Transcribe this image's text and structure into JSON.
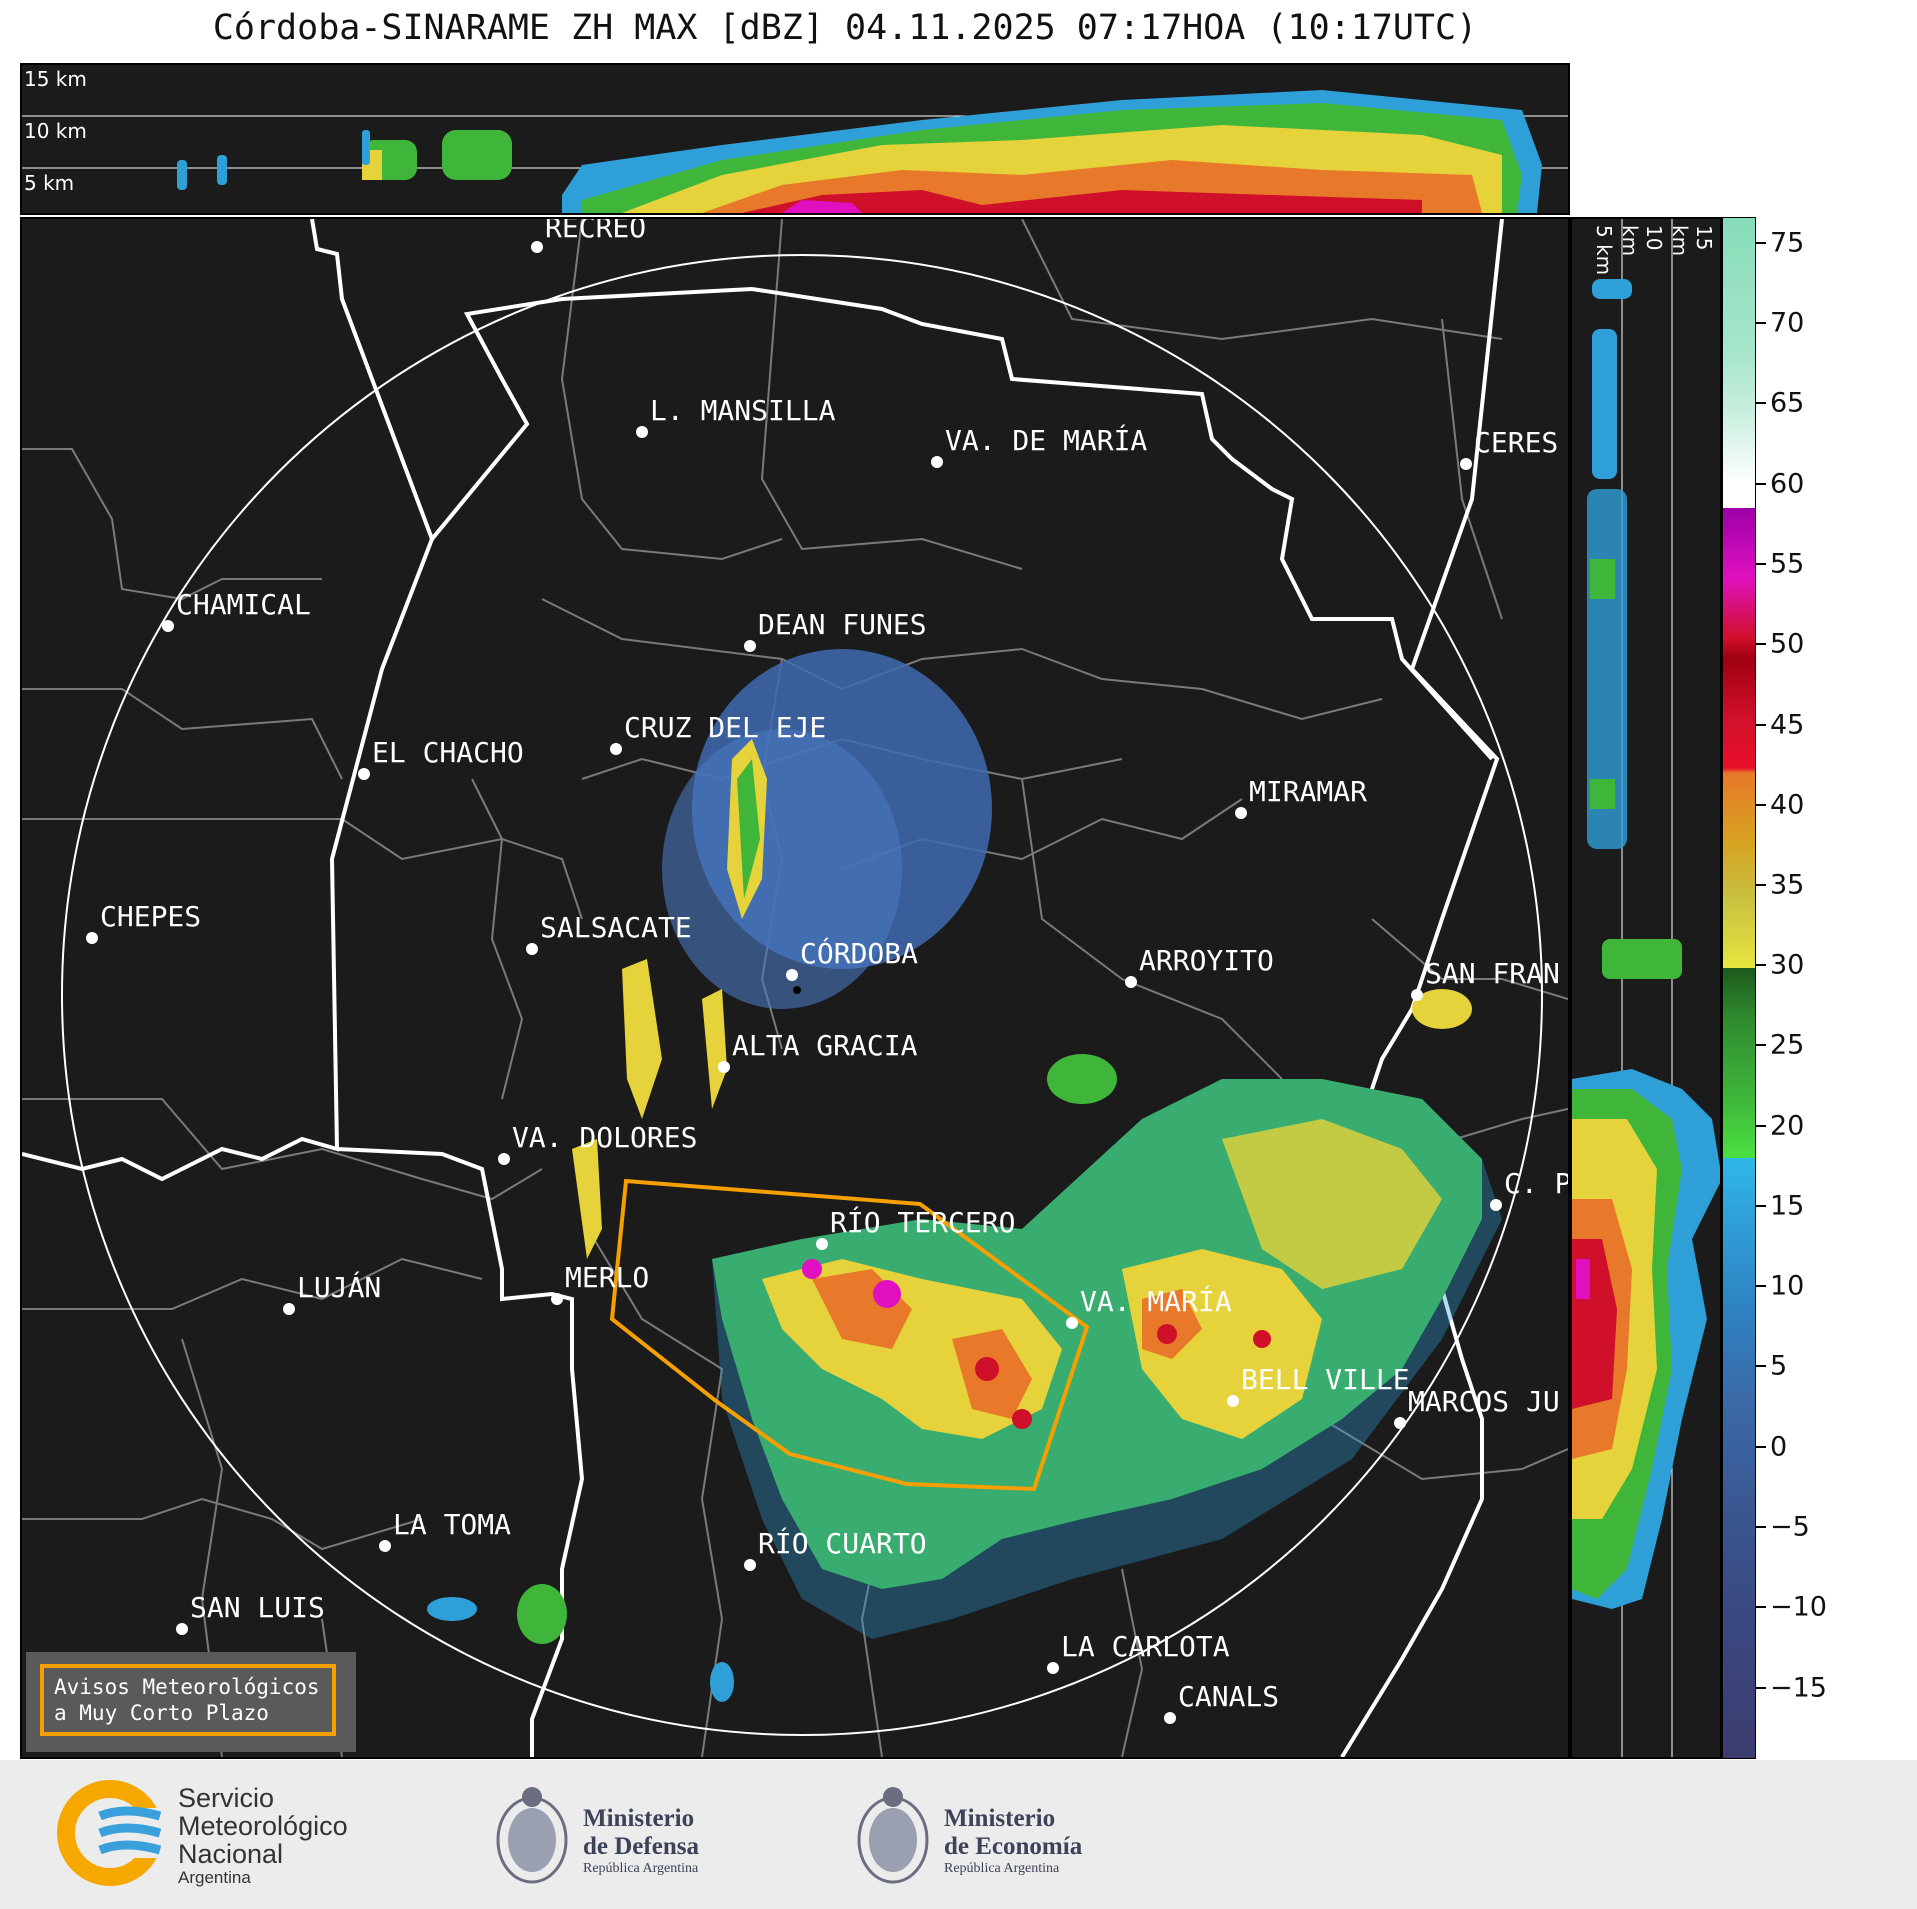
{
  "title": "Córdoba-SINARAME ZH MAX [dBZ] 04.11.2025 07:17HOA (10:17UTC)",
  "altitude_labels": [
    "15 km",
    "10 km",
    "5 km"
  ],
  "cities": [
    {
      "name": "RECREO"
    },
    {
      "name": "L. MANSILLA"
    },
    {
      "name": "VA. DE MARÍA"
    },
    {
      "name": "CERES"
    },
    {
      "name": "CHAMICAL"
    },
    {
      "name": "DEAN FUNES"
    },
    {
      "name": "CRUZ DEL EJE"
    },
    {
      "name": "EL CHACHO"
    },
    {
      "name": "MIRAMAR"
    },
    {
      "name": "CHEPES"
    },
    {
      "name": "SALSACATE"
    },
    {
      "name": "CÓRDOBA"
    },
    {
      "name": "ARROYITO"
    },
    {
      "name": "SAN FRAN"
    },
    {
      "name": "ALTA GRACIA"
    },
    {
      "name": "VA. DOLORES"
    },
    {
      "name": "C. P"
    },
    {
      "name": "RÍO TERCERO"
    },
    {
      "name": "MERLO"
    },
    {
      "name": "LUJÁN"
    },
    {
      "name": "VA. MARÍA"
    },
    {
      "name": "BELL VILLE"
    },
    {
      "name": "MARCOS JU"
    },
    {
      "name": "LA TOMA"
    },
    {
      "name": "RÍO CUARTO"
    },
    {
      "name": "SAN LUIS"
    },
    {
      "name": "LA CARLOTA"
    },
    {
      "name": "CANALS"
    }
  ],
  "colorbar": {
    "labels": [
      "75",
      "70",
      "65",
      "60",
      "55",
      "50",
      "45",
      "40",
      "35",
      "30",
      "25",
      "20",
      "15",
      "10",
      "5",
      "0",
      "−5",
      "−10",
      "−15"
    ]
  },
  "legend": {
    "line1": "Avisos Meteorológicos",
    "line2": "a Muy Corto Plazo"
  },
  "footer": {
    "smn": [
      "Servicio",
      "Meteorológico",
      "Nacional",
      "Argentina"
    ],
    "defensa": [
      "Ministerio",
      "de Defensa",
      "República Argentina"
    ],
    "economia": [
      "Ministerio",
      "de Economía",
      "República Argentina"
    ]
  }
}
